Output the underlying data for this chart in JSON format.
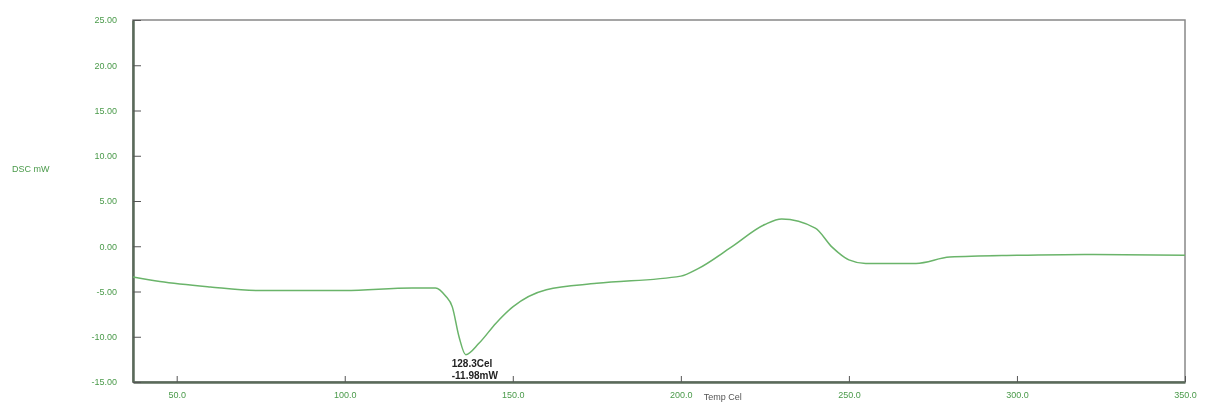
{
  "chart_data": {
    "type": "line",
    "xlabel": "Temp Cel",
    "ylabel": "DSC mW",
    "x": [
      37,
      45,
      60,
      75,
      100,
      120,
      127,
      130,
      132,
      134,
      136,
      140,
      145,
      150,
      160,
      175,
      200,
      205,
      215,
      225,
      230,
      240,
      245,
      250,
      255,
      270,
      280,
      300,
      320,
      350
    ],
    "series": [
      {
        "color": "#6ab46a",
        "values": [
          -3.4,
          -3.9,
          -4.5,
          -4.9,
          -4.9,
          -4.6,
          -4.6,
          -5.5,
          -6.7,
          -10,
          -11.98,
          -10.7,
          -8.5,
          -6.7,
          -4.8,
          -4.1,
          -3.3,
          -2.5,
          -0.1,
          2.4,
          3.0,
          2.0,
          -0.1,
          -1.5,
          -1.9,
          -1.9,
          -1.2,
          -1.0,
          -0.9,
          -1.0
        ]
      }
    ],
    "xlim": [
      37,
      350
    ],
    "ylim": [
      -15,
      25
    ],
    "xticks": [
      {
        "value": 50,
        "label": "50.0"
      },
      {
        "value": 100,
        "label": "100.0"
      },
      {
        "value": 150,
        "label": "150.0"
      },
      {
        "value": 200,
        "label": "200.0"
      },
      {
        "value": 250,
        "label": "250.0"
      },
      {
        "value": 300,
        "label": "300.0"
      },
      {
        "value": 350,
        "label": "350.0"
      }
    ],
    "yticks": [
      {
        "value": -15,
        "label": "-15.00"
      },
      {
        "value": -10,
        "label": "-10.00"
      },
      {
        "value": -5,
        "label": "-5.00"
      },
      {
        "value": 0,
        "label": "0.00"
      },
      {
        "value": 5,
        "label": "5.00"
      },
      {
        "value": 10,
        "label": "10.00"
      },
      {
        "value": 15,
        "label": "15.00"
      },
      {
        "value": 20,
        "label": "20.00"
      },
      {
        "value": 25,
        "label": "25.00"
      }
    ],
    "annotations": [
      "128.3Cel",
      "-11.98mW"
    ],
    "grid": false,
    "legend": false,
    "marker": "none",
    "line_style": "solid"
  }
}
